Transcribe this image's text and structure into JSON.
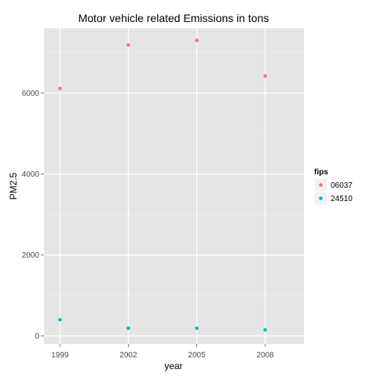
{
  "chart_data": {
    "type": "scatter",
    "title": "Motor vehicle related Emissions in tons",
    "xlabel": "year",
    "ylabel": "PM2.5",
    "x": [
      1999,
      2002,
      2005,
      2008
    ],
    "x_tick_labels": [
      "1999",
      "2002",
      "2005",
      "2008"
    ],
    "xlim": [
      1998.3,
      2009.7
    ],
    "y_ticks": [
      0,
      2000,
      4000,
      6000
    ],
    "y_tick_labels": [
      "0",
      "2000",
      "4000",
      "6000"
    ],
    "ylim": [
      -200,
      7600
    ],
    "grid": true,
    "legend": {
      "title": "fips",
      "position": "right"
    },
    "series": [
      {
        "name": "06037",
        "color": "#F8766D",
        "values": [
          6110,
          7190,
          7300,
          6420
        ]
      },
      {
        "name": "24510",
        "color": "#00BFC4",
        "values": [
          400,
          190,
          190,
          150
        ]
      }
    ]
  }
}
